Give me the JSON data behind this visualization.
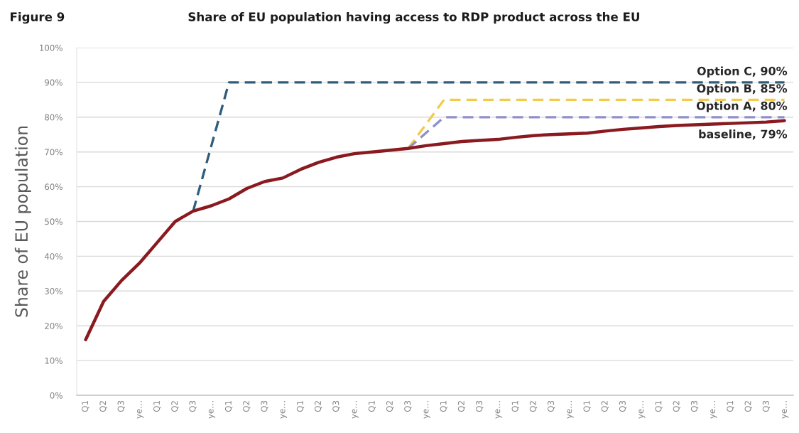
{
  "chart_data": {
    "type": "line",
    "title": "Share of EU population having access to RDP product across the EU",
    "annotations": [
      "Figure 9"
    ],
    "ylabel": "Share of EU population",
    "categories": [
      "Q1",
      "Q2",
      "Q3",
      "ye…",
      "Q1",
      "Q2",
      "Q3",
      "ye…",
      "Q1",
      "Q2",
      "Q3",
      "ye…",
      "Q1",
      "Q2",
      "Q3",
      "ye…",
      "Q1",
      "Q2",
      "Q3",
      "ye…",
      "Q1",
      "Q2",
      "Q3",
      "ye…",
      "Q1",
      "Q2",
      "Q3",
      "ye…",
      "Q1",
      "Q2",
      "Q3",
      "ye…",
      "Q1",
      "Q2",
      "Q3",
      "ye…",
      "Q1",
      "Q2",
      "Q3",
      "ye…"
    ],
    "series": [
      {
        "color": "#2f5d7c",
        "line_style": "dashed",
        "values": [
          null,
          null,
          null,
          null,
          null,
          null,
          53,
          71.5,
          90,
          90,
          90,
          90,
          90,
          90,
          90,
          90,
          90,
          90,
          90,
          90,
          90,
          90,
          90,
          90,
          90,
          90,
          90,
          90,
          90,
          90,
          90,
          90,
          90,
          90,
          90,
          90,
          90,
          90,
          90,
          90
        ],
        "value_labels": [
          null,
          null,
          null,
          null,
          null,
          null,
          null,
          null,
          null,
          null,
          null,
          null,
          null,
          null,
          null,
          null,
          null,
          null,
          null,
          null,
          null,
          null,
          null,
          null,
          null,
          null,
          null,
          null,
          null,
          null,
          null,
          null,
          null,
          null,
          null,
          null,
          null,
          null,
          null,
          "Option C, 90%"
        ]
      },
      {
        "color": "#f2cb4c",
        "line_style": "dashed",
        "values": [
          null,
          null,
          null,
          null,
          null,
          null,
          null,
          null,
          null,
          null,
          null,
          null,
          null,
          null,
          null,
          null,
          null,
          null,
          71,
          78,
          85,
          85,
          85,
          85,
          85,
          85,
          85,
          85,
          85,
          85,
          85,
          85,
          85,
          85,
          85,
          85,
          85,
          85,
          85,
          85
        ],
        "value_labels": [
          null,
          null,
          null,
          null,
          null,
          null,
          null,
          null,
          null,
          null,
          null,
          null,
          null,
          null,
          null,
          null,
          null,
          null,
          null,
          null,
          null,
          null,
          null,
          null,
          null,
          null,
          null,
          null,
          null,
          null,
          null,
          null,
          null,
          null,
          null,
          null,
          null,
          null,
          null,
          "Option B, 85%"
        ]
      },
      {
        "color": "#8f8fcb",
        "line_style": "dashed",
        "values": [
          null,
          null,
          null,
          null,
          null,
          null,
          null,
          null,
          null,
          null,
          null,
          null,
          null,
          null,
          null,
          null,
          null,
          null,
          71,
          75.5,
          80,
          80,
          80,
          80,
          80,
          80,
          80,
          80,
          80,
          80,
          80,
          80,
          80,
          80,
          80,
          80,
          80,
          80,
          80,
          80
        ],
        "value_labels": [
          null,
          null,
          null,
          null,
          null,
          null,
          null,
          null,
          null,
          null,
          null,
          null,
          null,
          null,
          null,
          null,
          null,
          null,
          null,
          null,
          null,
          null,
          null,
          null,
          null,
          null,
          null,
          null,
          null,
          null,
          null,
          null,
          null,
          null,
          null,
          null,
          null,
          null,
          null,
          "Option A, 80%"
        ]
      },
      {
        "color": "#8a1a1f",
        "line_style": "solid",
        "values": [
          16,
          27,
          33,
          38,
          44,
          50,
          53,
          54.5,
          56.5,
          59.5,
          61.5,
          62.5,
          65,
          67,
          68.5,
          69.5,
          70,
          70.5,
          71,
          71.8,
          72.4,
          73,
          73.3,
          73.6,
          74.2,
          74.7,
          75,
          75.2,
          75.4,
          76,
          76.5,
          76.9,
          77.3,
          77.6,
          77.8,
          78,
          78.2,
          78.4,
          78.6,
          79
        ],
        "value_labels": [
          null,
          null,
          null,
          null,
          null,
          null,
          null,
          null,
          null,
          null,
          null,
          null,
          null,
          null,
          null,
          null,
          null,
          null,
          null,
          null,
          null,
          null,
          null,
          null,
          null,
          null,
          null,
          null,
          null,
          null,
          null,
          null,
          null,
          null,
          null,
          null,
          null,
          null,
          null,
          "baseline, 79%"
        ]
      }
    ],
    "ylim": [
      0,
      100
    ],
    "yticks": [
      {
        "value": 0,
        "label": "0%"
      },
      {
        "value": 10,
        "label": "10%"
      },
      {
        "value": 20,
        "label": "20%"
      },
      {
        "value": 30,
        "label": "30%"
      },
      {
        "value": 40,
        "label": "40%"
      },
      {
        "value": 50,
        "label": "50%"
      },
      {
        "value": 60,
        "label": "60%"
      },
      {
        "value": 70,
        "label": "70%"
      },
      {
        "value": 80,
        "label": "80%"
      },
      {
        "value": 90,
        "label": "90%"
      },
      {
        "value": 100,
        "label": "100%"
      }
    ],
    "grid": "y"
  }
}
